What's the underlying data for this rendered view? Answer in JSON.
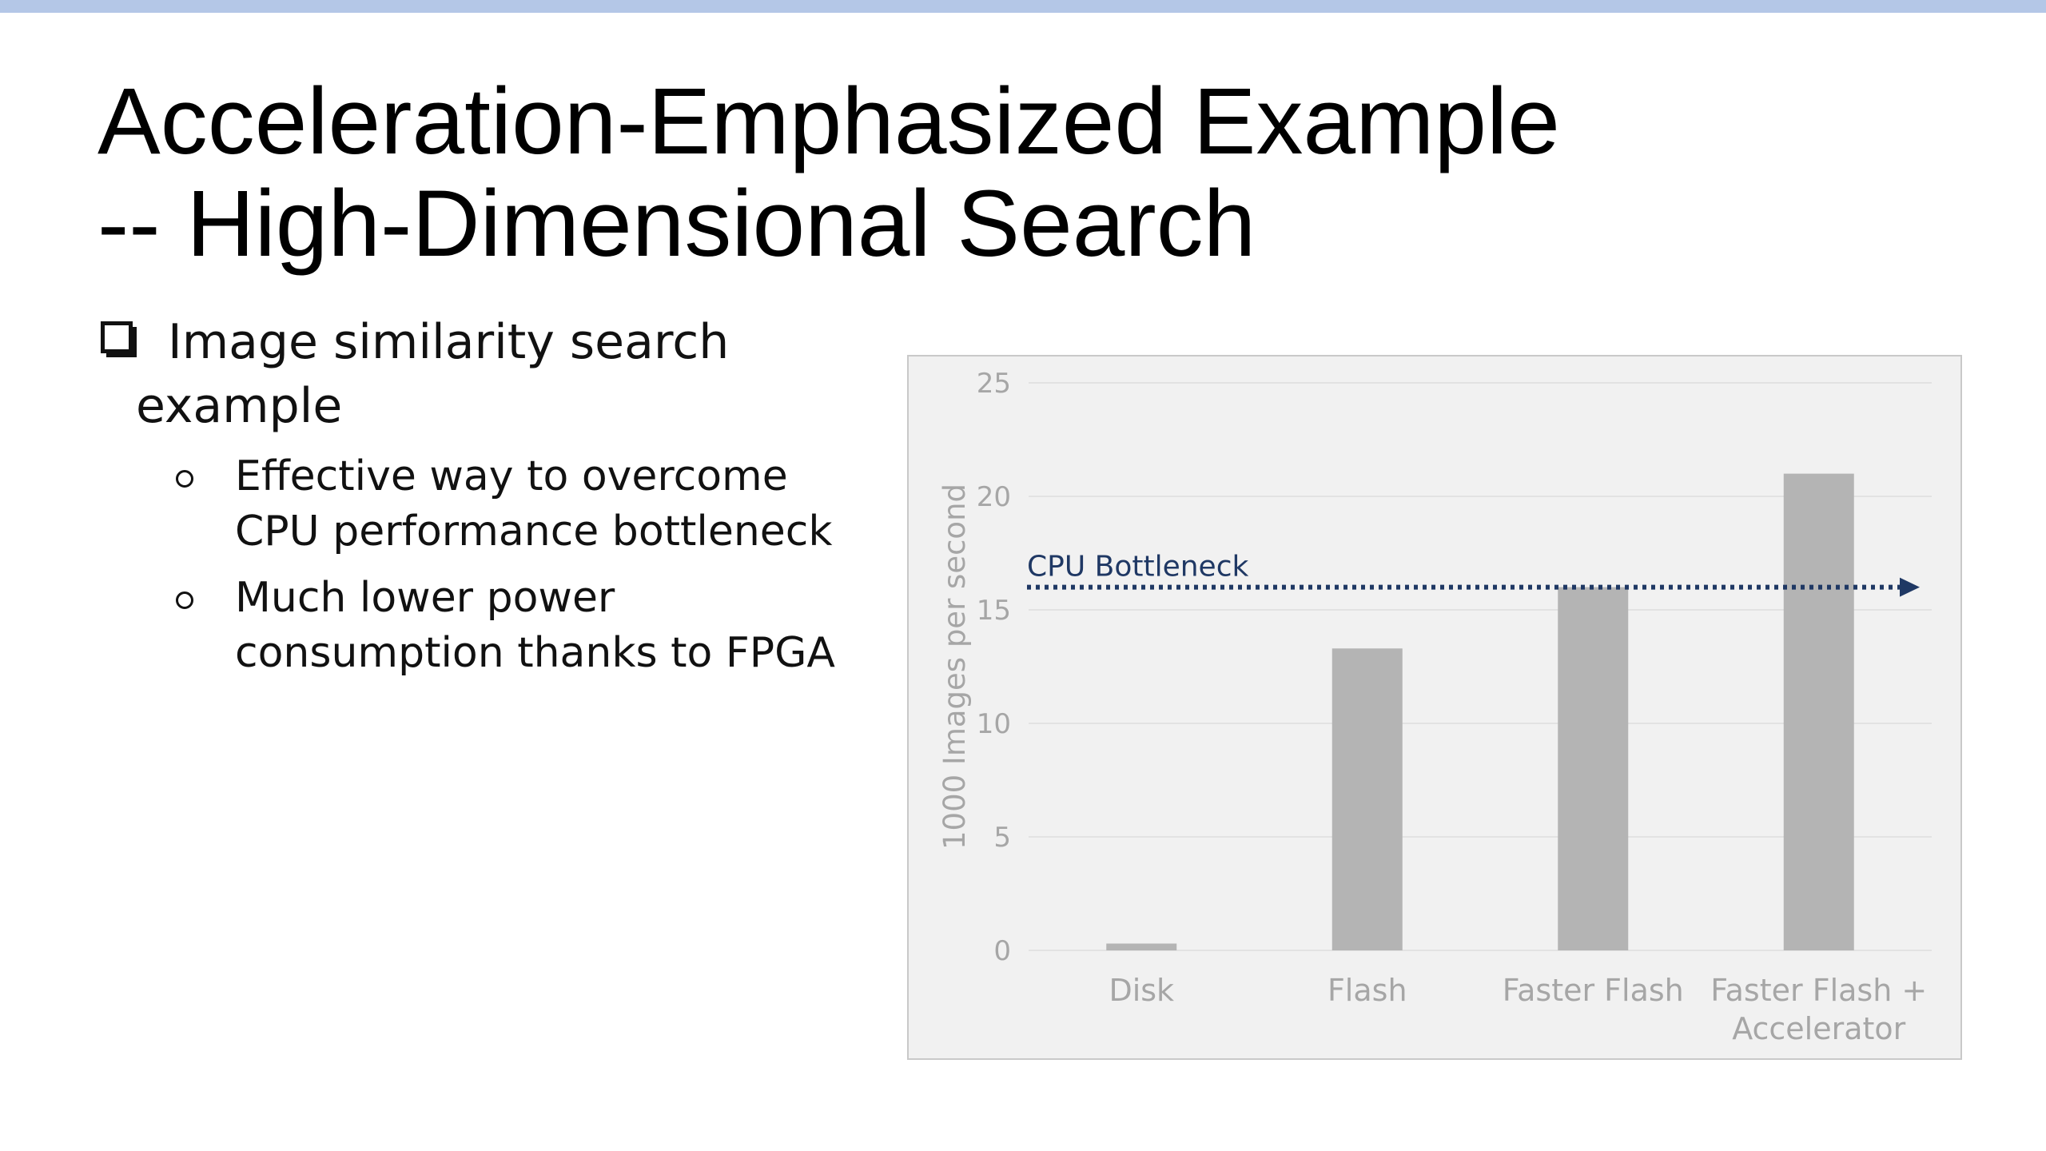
{
  "slide": {
    "title_lines": [
      "Acceleration-Emphasized Example",
      "-- High-Dimensional Search"
    ]
  },
  "bullets": {
    "main_lines": [
      "Image similarity search",
      "example"
    ],
    "sub": [
      {
        "lines": [
          "Effective way to overcome",
          "CPU performance bottleneck"
        ]
      },
      {
        "lines": [
          "Much lower power",
          "consumption thanks to FPGA"
        ]
      }
    ]
  },
  "chart_data": {
    "type": "bar",
    "categories": [
      [
        "Disk"
      ],
      [
        "Flash"
      ],
      [
        "Faster Flash"
      ],
      [
        "Faster Flash +",
        "Accelerator"
      ]
    ],
    "values": [
      0.3,
      13.3,
      16,
      21
    ],
    "ylabel": "1000 Images per second",
    "ylim": [
      0,
      25
    ],
    "yticks": [
      0,
      5,
      10,
      15,
      20,
      25
    ],
    "grid": true,
    "bar_color": "#b4b4b4",
    "annotation": {
      "text": "CPU Bottleneck",
      "y": 16,
      "color": "#1f3864",
      "style": "dotted arrow"
    }
  },
  "colors": {
    "top_bar": "#b4c7e7",
    "chart_background": "#f1f1f1",
    "axis_text": "#a6a6a6"
  }
}
